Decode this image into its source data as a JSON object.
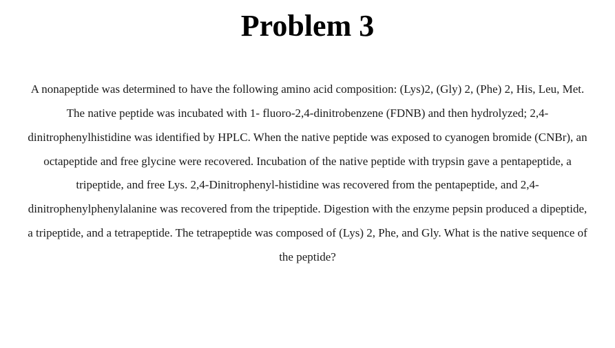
{
  "document": {
    "title": "Problem 3",
    "body": "A nonapeptide was determined to have the following amino acid composition: (Lys)2, (Gly) 2, (Phe) 2, His, Leu, Met. The native peptide was incubated with 1- fluoro-2,4-dinitrobenzene (FDNB) and then hydrolyzed; 2,4- dinitrophenylhistidine was identified by HPLC. When the native peptide was exposed to cyanogen bromide (CNBr), an octapeptide and free glycine were recovered. Incubation of the native peptide with trypsin gave a pentapeptide, a tripeptide, and free Lys. 2,4-Dinitrophenyl-histidine was recovered from the pentapeptide, and 2,4- dinitrophenylphenylalanine was recovered from the tripeptide. Digestion with the enzyme pepsin produced a dipeptide, a tripeptide, and a tetrapeptide. The tetrapeptide was composed of (Lys) 2, Phe, and Gly. What is the native sequence of the peptide?",
    "colors": {
      "background": "#ffffff",
      "text": "#1a1a1a",
      "title": "#000000"
    },
    "typography": {
      "title_fontsize": 44,
      "title_weight": "bold",
      "body_fontsize": 17,
      "body_lineheight": 2.05,
      "font_family": "Georgia, Times New Roman, serif",
      "text_align": "center"
    }
  }
}
